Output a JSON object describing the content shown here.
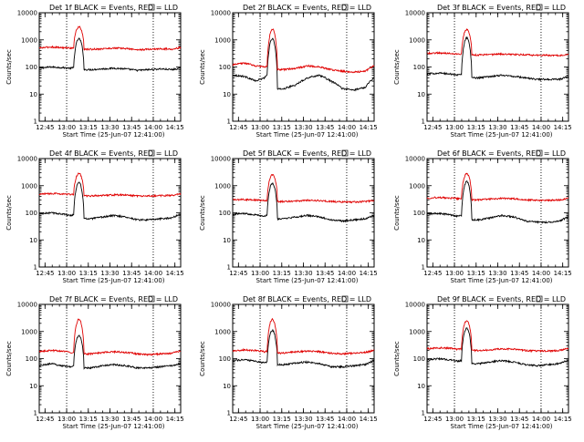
{
  "figure": {
    "xlabel": "Start Time (25-Jun-07 12:41:00)",
    "ylabel": "Counts/sec",
    "x_tick_labels": [
      "12:45",
      "13:00",
      "13:15",
      "13:30",
      "13:45",
      "14:00",
      "14:15"
    ],
    "y_tick_labels": [
      "1",
      "10",
      "100",
      "1000",
      "10000"
    ],
    "colors": {
      "events": "#000000",
      "lld": "#e00000"
    }
  },
  "chart_data": [
    {
      "type": "line",
      "title": "Det 1f BLACK = Events, RED = LLD",
      "xlabel": "Start Time (25-Jun-07 12:41:00)",
      "ylabel": "Counts/sec",
      "x_unit": "minutes after 12:41:00",
      "xlim": [
        0,
        98
      ],
      "ylim": [
        1,
        10000
      ],
      "y_scale": "log",
      "dotted_verticals": [
        "13:00",
        "14:00"
      ],
      "flare": {
        "start": 24,
        "end": 31,
        "peak_time": 27,
        "events_peak": 1100,
        "lld_peak": 3000
      },
      "series": [
        {
          "name": "BLACK = Events",
          "color": "#000000",
          "x": [
            0,
            8,
            16,
            22,
            24,
            31,
            36,
            44,
            52,
            60,
            68,
            76,
            84,
            92,
            98
          ],
          "y": [
            90,
            100,
            95,
            90,
            95,
            80,
            80,
            85,
            90,
            85,
            75,
            80,
            85,
            80,
            90
          ]
        },
        {
          "name": "RED = LLD",
          "color": "#e00000",
          "x": [
            0,
            8,
            16,
            22,
            24,
            31,
            36,
            44,
            52,
            60,
            68,
            76,
            84,
            92,
            98
          ],
          "y": [
            500,
            550,
            520,
            500,
            520,
            450,
            450,
            470,
            500,
            480,
            430,
            450,
            470,
            460,
            520
          ]
        }
      ]
    },
    {
      "type": "line",
      "title": "Det 2f BLACK = Events, RED = LLD",
      "xlabel": "Start Time (25-Jun-07 12:41:00)",
      "ylabel": "Counts/sec",
      "x_unit": "minutes after 12:41:00",
      "xlim": [
        0,
        98
      ],
      "ylim": [
        1,
        10000
      ],
      "y_scale": "log",
      "dotted_verticals": [
        "13:00",
        "14:00"
      ],
      "flare": {
        "start": 24,
        "end": 31,
        "peak_time": 27,
        "events_peak": 1100,
        "lld_peak": 2500
      },
      "series": [
        {
          "name": "BLACK = Events",
          "color": "#000000",
          "x": [
            0,
            8,
            16,
            22,
            24,
            31,
            36,
            44,
            52,
            60,
            68,
            76,
            84,
            92,
            98
          ],
          "y": [
            50,
            45,
            30,
            40,
            50,
            15,
            16,
            22,
            40,
            50,
            30,
            16,
            14,
            18,
            40
          ]
        },
        {
          "name": "RED = LLD",
          "color": "#e00000",
          "x": [
            0,
            8,
            16,
            22,
            24,
            31,
            36,
            44,
            52,
            60,
            68,
            76,
            84,
            92,
            98
          ],
          "y": [
            120,
            140,
            110,
            100,
            110,
            80,
            80,
            90,
            110,
            100,
            80,
            70,
            65,
            70,
            110
          ]
        }
      ]
    },
    {
      "type": "line",
      "title": "Det 3f BLACK = Events, RED = LLD",
      "xlabel": "Start Time (25-Jun-07 12:41:00)",
      "ylabel": "Counts/sec",
      "x_unit": "minutes after 12:41:00",
      "xlim": [
        0,
        98
      ],
      "ylim": [
        1,
        10000
      ],
      "y_scale": "log",
      "dotted_verticals": [
        "13:00",
        "14:00"
      ],
      "flare": {
        "start": 24,
        "end": 31,
        "peak_time": 27,
        "events_peak": 1200,
        "lld_peak": 2400
      },
      "series": [
        {
          "name": "BLACK = Events",
          "color": "#000000",
          "x": [
            0,
            8,
            16,
            22,
            24,
            31,
            36,
            44,
            52,
            60,
            68,
            76,
            84,
            92,
            98
          ],
          "y": [
            55,
            60,
            55,
            50,
            55,
            40,
            40,
            45,
            50,
            45,
            40,
            35,
            35,
            35,
            45
          ]
        },
        {
          "name": "RED = LLD",
          "color": "#e00000",
          "x": [
            0,
            8,
            16,
            22,
            24,
            31,
            36,
            44,
            52,
            60,
            68,
            76,
            84,
            92,
            98
          ],
          "y": [
            320,
            330,
            320,
            300,
            310,
            280,
            280,
            290,
            300,
            290,
            280,
            270,
            270,
            270,
            300
          ]
        }
      ]
    },
    {
      "type": "line",
      "title": "Det 4f BLACK = Events, RED = LLD",
      "xlabel": "Start Time (25-Jun-07 12:41:00)",
      "ylabel": "Counts/sec",
      "x_unit": "minutes after 12:41:00",
      "xlim": [
        0,
        98
      ],
      "ylim": [
        1,
        10000
      ],
      "y_scale": "log",
      "dotted_verticals": [
        "13:00",
        "14:00"
      ],
      "flare": {
        "start": 24,
        "end": 31,
        "peak_time": 27,
        "events_peak": 1300,
        "lld_peak": 2800
      },
      "series": [
        {
          "name": "BLACK = Events",
          "color": "#000000",
          "x": [
            0,
            8,
            16,
            22,
            24,
            31,
            36,
            44,
            52,
            60,
            68,
            76,
            84,
            92,
            98
          ],
          "y": [
            90,
            100,
            90,
            80,
            85,
            60,
            60,
            70,
            80,
            70,
            55,
            55,
            60,
            65,
            90
          ]
        },
        {
          "name": "RED = LLD",
          "color": "#e00000",
          "x": [
            0,
            8,
            16,
            22,
            24,
            31,
            36,
            44,
            52,
            60,
            68,
            76,
            84,
            92,
            98
          ],
          "y": [
            480,
            520,
            500,
            470,
            480,
            420,
            420,
            440,
            460,
            450,
            420,
            420,
            430,
            440,
            500
          ]
        }
      ]
    },
    {
      "type": "line",
      "title": "Det 5f BLACK = Events, RED = LLD",
      "xlabel": "Start Time (25-Jun-07 12:41:00)",
      "ylabel": "Counts/sec",
      "x_unit": "minutes after 12:41:00",
      "xlim": [
        0,
        98
      ],
      "ylim": [
        1,
        10000
      ],
      "y_scale": "log",
      "dotted_verticals": [
        "13:00",
        "14:00"
      ],
      "flare": {
        "start": 24,
        "end": 31,
        "peak_time": 27,
        "events_peak": 1200,
        "lld_peak": 2600
      },
      "series": [
        {
          "name": "BLACK = Events",
          "color": "#000000",
          "x": [
            0,
            8,
            16,
            22,
            24,
            31,
            36,
            44,
            52,
            60,
            68,
            76,
            84,
            92,
            98
          ],
          "y": [
            90,
            95,
            85,
            75,
            80,
            60,
            60,
            70,
            80,
            70,
            55,
            50,
            55,
            60,
            80
          ]
        },
        {
          "name": "RED = LLD",
          "color": "#e00000",
          "x": [
            0,
            8,
            16,
            22,
            24,
            31,
            36,
            44,
            52,
            60,
            68,
            76,
            84,
            92,
            98
          ],
          "y": [
            300,
            310,
            300,
            280,
            290,
            260,
            260,
            270,
            290,
            280,
            260,
            250,
            250,
            260,
            290
          ]
        }
      ]
    },
    {
      "type": "line",
      "title": "Det 6f BLACK = Events, RED = LLD",
      "xlabel": "Start Time (25-Jun-07 12:41:00)",
      "ylabel": "Counts/sec",
      "x_unit": "minutes after 12:41:00",
      "xlim": [
        0,
        98
      ],
      "ylim": [
        1,
        10000
      ],
      "y_scale": "log",
      "dotted_verticals": [
        "13:00",
        "14:00"
      ],
      "flare": {
        "start": 24,
        "end": 31,
        "peak_time": 27,
        "events_peak": 1400,
        "lld_peak": 2800
      },
      "series": [
        {
          "name": "BLACK = Events",
          "color": "#000000",
          "x": [
            0,
            8,
            16,
            22,
            24,
            31,
            36,
            44,
            52,
            60,
            68,
            76,
            84,
            92,
            98
          ],
          "y": [
            90,
            95,
            85,
            75,
            80,
            55,
            55,
            65,
            80,
            70,
            50,
            45,
            45,
            50,
            70
          ]
        },
        {
          "name": "RED = LLD",
          "color": "#e00000",
          "x": [
            0,
            8,
            16,
            22,
            24,
            31,
            36,
            44,
            52,
            60,
            68,
            76,
            84,
            92,
            98
          ],
          "y": [
            350,
            370,
            350,
            330,
            340,
            300,
            300,
            320,
            340,
            330,
            300,
            290,
            290,
            300,
            340
          ]
        }
      ]
    },
    {
      "type": "line",
      "title": "Det 7f BLACK = Events, RED = LLD",
      "xlabel": "Start Time (25-Jun-07 12:41:00)",
      "ylabel": "Counts/sec",
      "x_unit": "minutes after 12:41:00",
      "xlim": [
        0,
        98
      ],
      "ylim": [
        1,
        10000
      ],
      "y_scale": "log",
      "dotted_verticals": [
        "13:00",
        "14:00"
      ],
      "flare": {
        "start": 24,
        "end": 31,
        "peak_time": 27,
        "events_peak": 700,
        "lld_peak": 2800
      },
      "series": [
        {
          "name": "BLACK = Events",
          "color": "#000000",
          "x": [
            0,
            8,
            16,
            22,
            24,
            31,
            36,
            44,
            52,
            60,
            68,
            76,
            84,
            92,
            98
          ],
          "y": [
            55,
            65,
            55,
            50,
            55,
            45,
            45,
            55,
            60,
            55,
            45,
            45,
            50,
            55,
            65
          ]
        },
        {
          "name": "RED = LLD",
          "color": "#e00000",
          "x": [
            0,
            8,
            16,
            22,
            24,
            31,
            36,
            44,
            52,
            60,
            68,
            76,
            84,
            92,
            98
          ],
          "y": [
            180,
            200,
            190,
            170,
            180,
            150,
            150,
            170,
            180,
            170,
            150,
            140,
            150,
            160,
            190
          ]
        }
      ]
    },
    {
      "type": "line",
      "title": "Det 8f BLACK = Events, RED = LLD",
      "xlabel": "Start Time (25-Jun-07 12:41:00)",
      "ylabel": "Counts/sec",
      "x_unit": "minutes after 12:41:00",
      "xlim": [
        0,
        98
      ],
      "ylim": [
        1,
        10000
      ],
      "y_scale": "log",
      "dotted_verticals": [
        "13:00",
        "14:00"
      ],
      "flare": {
        "start": 24,
        "end": 31,
        "peak_time": 27,
        "events_peak": 1100,
        "lld_peak": 2800
      },
      "series": [
        {
          "name": "BLACK = Events",
          "color": "#000000",
          "x": [
            0,
            8,
            16,
            22,
            24,
            31,
            36,
            44,
            52,
            60,
            68,
            76,
            84,
            92,
            98
          ],
          "y": [
            85,
            90,
            80,
            70,
            75,
            60,
            60,
            70,
            75,
            65,
            50,
            50,
            55,
            60,
            85
          ]
        },
        {
          "name": "RED = LLD",
          "color": "#e00000",
          "x": [
            0,
            8,
            16,
            22,
            24,
            31,
            36,
            44,
            52,
            60,
            68,
            76,
            84,
            92,
            98
          ],
          "y": [
            190,
            210,
            200,
            180,
            190,
            160,
            160,
            180,
            190,
            180,
            160,
            150,
            160,
            170,
            200
          ]
        }
      ]
    },
    {
      "type": "line",
      "title": "Det 9f BLACK = Events, RED = LLD",
      "xlabel": "Start Time (25-Jun-07 12:41:00)",
      "ylabel": "Counts/sec",
      "x_unit": "minutes after 12:41:00",
      "xlim": [
        0,
        98
      ],
      "ylim": [
        1,
        10000
      ],
      "y_scale": "log",
      "dotted_verticals": [
        "13:00",
        "14:00"
      ],
      "flare": {
        "start": 24,
        "end": 31,
        "peak_time": 27,
        "events_peak": 1300,
        "lld_peak": 2500
      },
      "series": [
        {
          "name": "BLACK = Events",
          "color": "#000000",
          "x": [
            0,
            8,
            16,
            22,
            24,
            31,
            36,
            44,
            52,
            60,
            68,
            76,
            84,
            92,
            98
          ],
          "y": [
            90,
            100,
            90,
            80,
            85,
            65,
            65,
            75,
            85,
            75,
            60,
            55,
            60,
            65,
            90
          ]
        },
        {
          "name": "RED = LLD",
          "color": "#e00000",
          "x": [
            0,
            8,
            16,
            22,
            24,
            31,
            36,
            44,
            52,
            60,
            68,
            76,
            84,
            92,
            98
          ],
          "y": [
            230,
            250,
            240,
            220,
            230,
            200,
            200,
            210,
            230,
            220,
            200,
            190,
            190,
            200,
            240
          ]
        }
      ]
    }
  ]
}
